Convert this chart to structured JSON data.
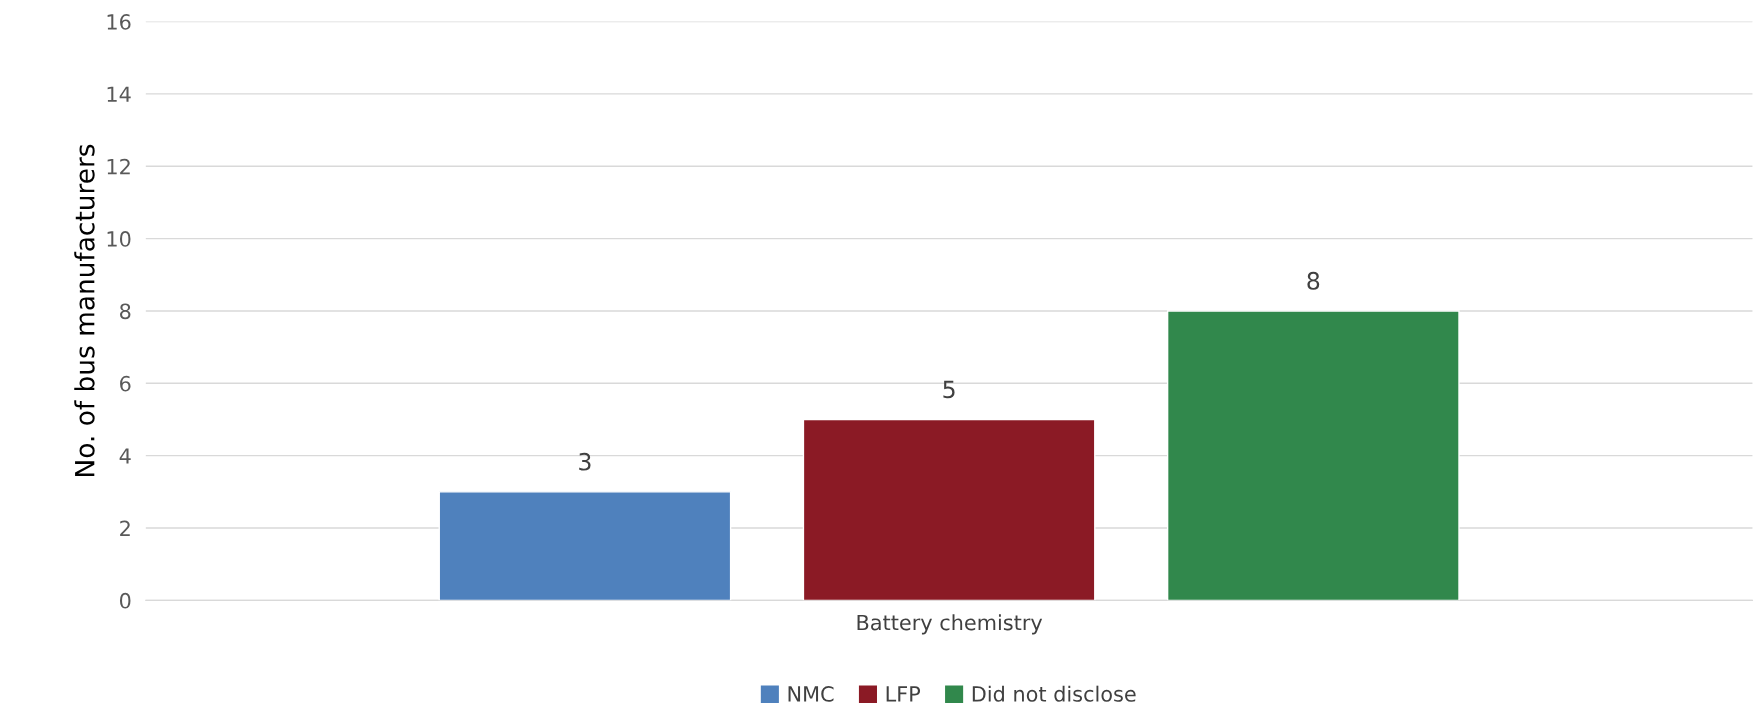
{
  "chart_data": {
    "type": "bar",
    "ylabel": "No. of bus manufacturers",
    "categories": [
      "Battery chemistry"
    ],
    "series": [
      {
        "name": "NMC",
        "color": "#4f81bd",
        "values": [
          3
        ]
      },
      {
        "name": "LFP",
        "color": "#8b1a25",
        "values": [
          5
        ]
      },
      {
        "name": "Did not disclose",
        "color": "#31884c",
        "values": [
          8
        ]
      }
    ],
    "ylim": [
      0,
      16
    ],
    "yticks": [
      0,
      2,
      4,
      6,
      8,
      10,
      12,
      14,
      16
    ],
    "grid": "y",
    "legend": "bottom",
    "data_labels": true
  }
}
